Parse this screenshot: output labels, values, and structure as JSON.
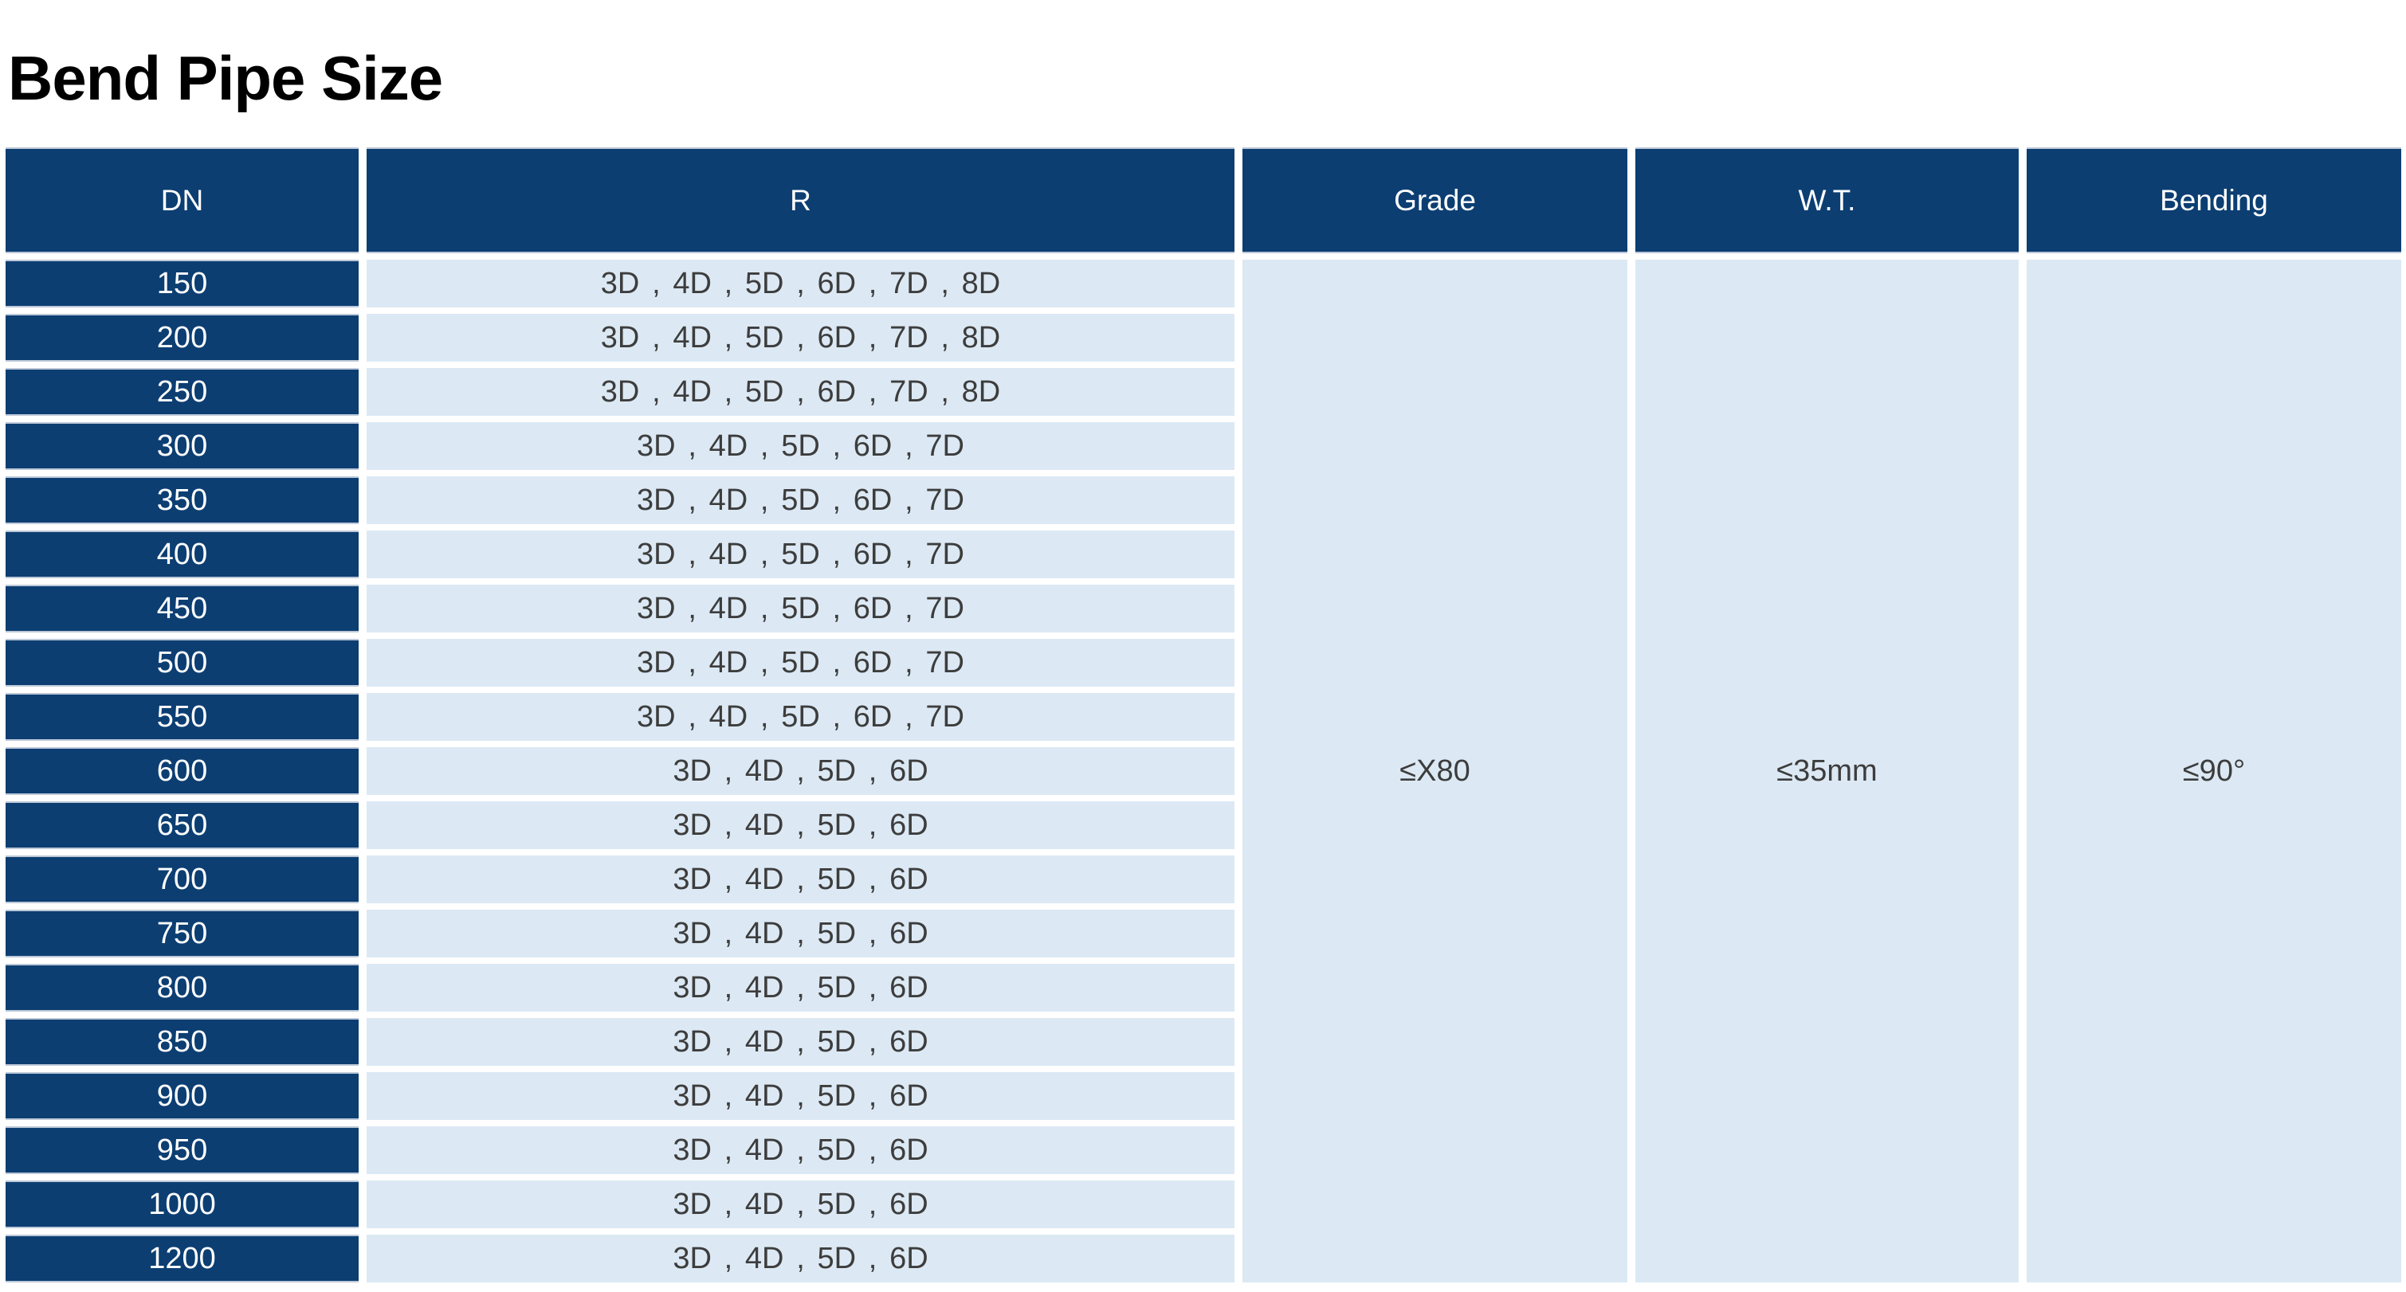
{
  "page": {
    "title": "Bend Pipe Size"
  },
  "colors": {
    "header_bg": "#0C3E72",
    "cell_bg": "#DCE9F4",
    "header_text": "#FFFFFF",
    "cell_text": "#3D3D3D",
    "page_bg": "#FFFFFF"
  },
  "table": {
    "columns": [
      {
        "key": "dn",
        "label": "DN"
      },
      {
        "key": "r",
        "label": "R"
      },
      {
        "key": "grade",
        "label": "Grade"
      },
      {
        "key": "wt",
        "label": "W.T."
      },
      {
        "key": "bending",
        "label": "Bending"
      }
    ],
    "rows": [
      {
        "dn": "150",
        "r": "3D、4D、5D、6D、7D、8D"
      },
      {
        "dn": "200",
        "r": "3D、4D、5D、6D、7D、8D"
      },
      {
        "dn": "250",
        "r": "3D、4D、5D、6D、7D、8D"
      },
      {
        "dn": "300",
        "r": "3D、4D、5D、6D、7D"
      },
      {
        "dn": "350",
        "r": "3D、4D、5D、6D、7D"
      },
      {
        "dn": "400",
        "r": "3D、4D、5D、6D、7D"
      },
      {
        "dn": "450",
        "r": "3D、4D、5D、6D、7D"
      },
      {
        "dn": "500",
        "r": "3D、4D、5D、6D、7D"
      },
      {
        "dn": "550",
        "r": "3D、4D、5D、6D、7D"
      },
      {
        "dn": "600",
        "r": "3D、4D、5D、6D"
      },
      {
        "dn": "650",
        "r": "3D、4D、5D、6D"
      },
      {
        "dn": "700",
        "r": "3D、4D、5D、6D"
      },
      {
        "dn": "750",
        "r": "3D、4D、5D、6D"
      },
      {
        "dn": "800",
        "r": "3D、4D、5D、6D"
      },
      {
        "dn": "850",
        "r": "3D、4D、5D、6D"
      },
      {
        "dn": "900",
        "r": "3D、4D、5D、6D"
      },
      {
        "dn": "950",
        "r": "3D、4D、5D、6D"
      },
      {
        "dn": "1000",
        "r": "3D、4D、5D、6D"
      },
      {
        "dn": "1200",
        "r": "3D、4D、5D、6D"
      }
    ],
    "merged": {
      "grade": "≤X80",
      "wt": "≤35mm",
      "bending": "≤90°"
    }
  }
}
